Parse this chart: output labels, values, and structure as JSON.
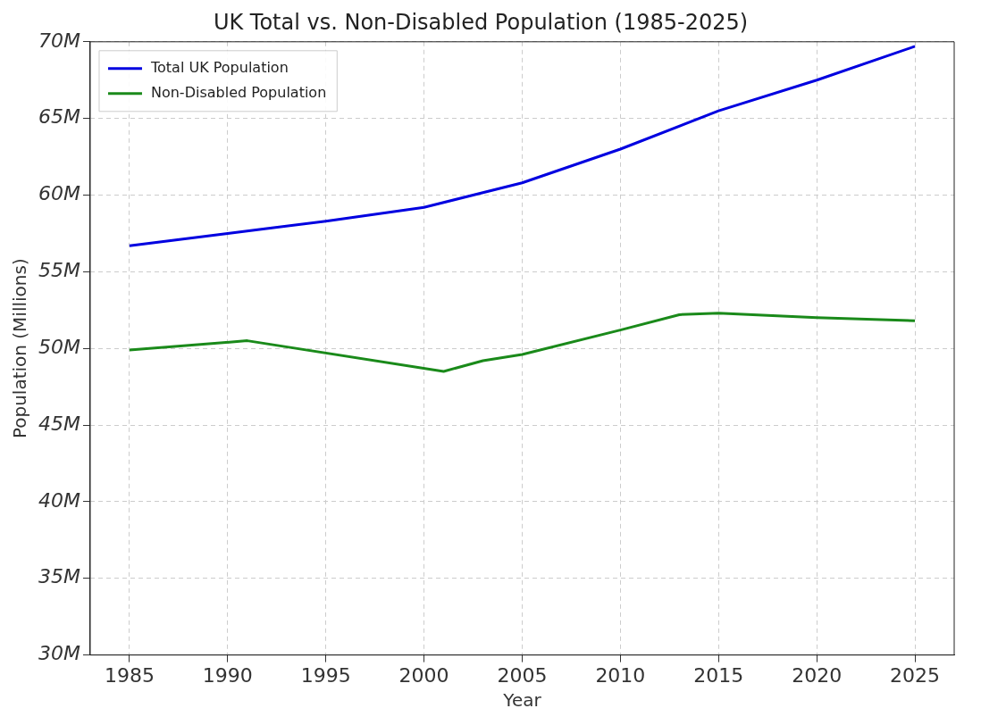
{
  "chart_data": {
    "type": "line",
    "title": "UK Total vs. Non-Disabled Population (1985-2025)",
    "xlabel": "Year",
    "ylabel": "Population (Millions)",
    "series": [
      {
        "name": "Total UK Population",
        "color": "#0000e0",
        "x": [
          1985,
          1990,
          1995,
          2000,
          2005,
          2010,
          2015,
          2020,
          2025
        ],
        "values": [
          56.7,
          57.5,
          58.3,
          59.2,
          60.8,
          63.0,
          65.5,
          67.5,
          69.7
        ]
      },
      {
        "name": "Non-Disabled Population",
        "color": "#1a8a1a",
        "x": [
          1985,
          1991,
          2001,
          2003,
          2005,
          2010,
          2013,
          2015,
          2020,
          2025
        ],
        "values": [
          49.9,
          50.5,
          48.5,
          49.2,
          49.6,
          51.2,
          52.2,
          52.3,
          52.0,
          51.8
        ]
      }
    ],
    "xlim": [
      1983,
      2027
    ],
    "xticks": [
      1985,
      1990,
      1995,
      2000,
      2005,
      2010,
      2015,
      2020,
      2025
    ],
    "ylim": [
      30,
      70
    ],
    "yticks": [
      {
        "value": 30,
        "label": "30M"
      },
      {
        "value": 35,
        "label": "35M"
      },
      {
        "value": 40,
        "label": "40M"
      },
      {
        "value": 45,
        "label": "45M"
      },
      {
        "value": 50,
        "label": "50M"
      },
      {
        "value": 55,
        "label": "55M"
      },
      {
        "value": 60,
        "label": "60M"
      },
      {
        "value": 65,
        "label": "65M"
      },
      {
        "value": 70,
        "label": "70M"
      }
    ],
    "grid": true,
    "legend": "top left",
    "marker": "none",
    "line_style": "solid"
  }
}
